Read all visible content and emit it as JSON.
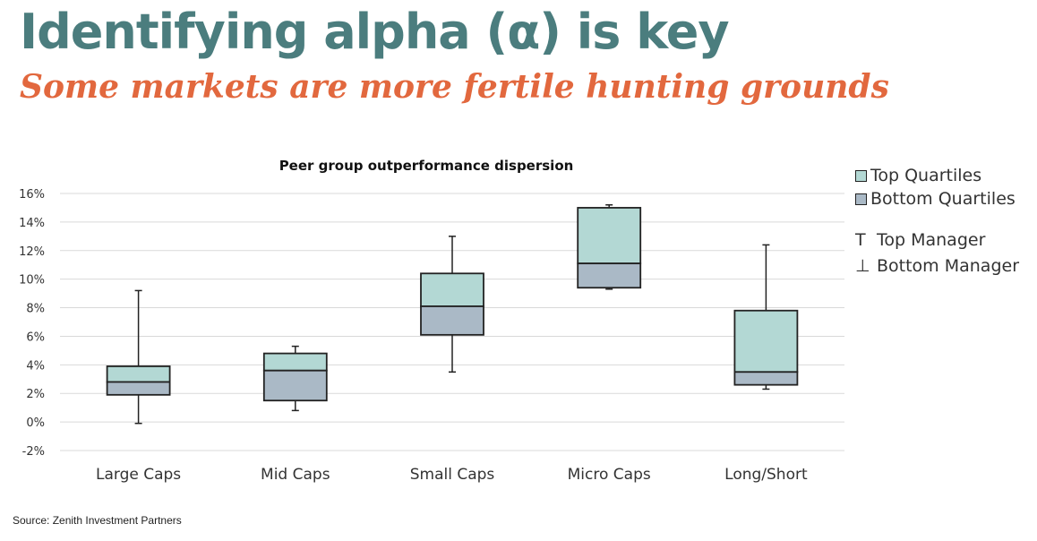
{
  "header": {
    "title": "Identifying alpha (α) is key",
    "subtitle": "Some markets are more fertile hunting grounds"
  },
  "footer": {
    "source": "Source: Zenith Investment Partners"
  },
  "legend": {
    "top_quartiles": "Top Quartiles",
    "bottom_quartiles": "Bottom Quartiles",
    "top_manager": "Top Manager",
    "bottom_manager": "Bottom Manager",
    "top_manager_symbol": "T",
    "bottom_manager_symbol": "⊥"
  },
  "colors": {
    "title": "#4b7d7e",
    "subtitle": "#e2683e",
    "top_quartile_fill": "#b3d8d4",
    "bottom_quartile_fill": "#aab9c6",
    "outline": "#222222",
    "grid": "#d9d9d9"
  },
  "chart_data": {
    "type": "box",
    "title": "Peer group outperformance dispersion",
    "categories": [
      "Large Caps",
      "Mid Caps",
      "Small Caps",
      "Micro Caps",
      "Long/Short"
    ],
    "y_ticks": [
      "-2%",
      "0%",
      "2%",
      "4%",
      "6%",
      "8%",
      "10%",
      "12%",
      "14%",
      "16%"
    ],
    "ylim": [
      -2,
      16
    ],
    "y_unit": "%",
    "grid": true,
    "legend_position": "right",
    "series": {
      "top_manager": [
        9.2,
        5.3,
        13.0,
        15.2,
        12.4
      ],
      "q3": [
        3.9,
        4.8,
        10.4,
        15.0,
        7.8
      ],
      "median": [
        2.8,
        3.6,
        8.1,
        11.1,
        3.5
      ],
      "q1": [
        1.9,
        1.5,
        6.1,
        9.4,
        2.6
      ],
      "bottom_manager": [
        -0.1,
        0.8,
        3.5,
        9.3,
        2.3
      ]
    }
  }
}
